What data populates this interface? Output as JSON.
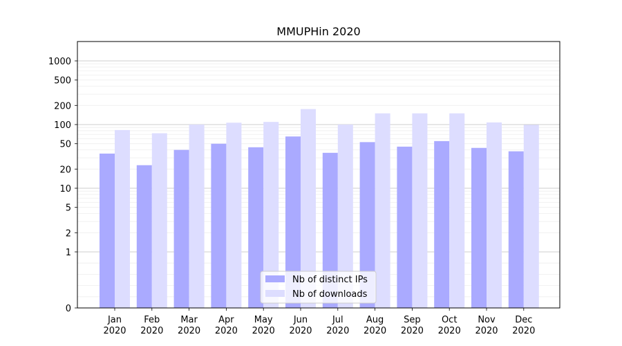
{
  "chart_data": {
    "type": "bar",
    "title": "MMUPHin 2020",
    "xlabel": "",
    "ylabel": "",
    "y_scale": "symlog",
    "ylim": [
      0,
      1300
    ],
    "yticks": [
      0,
      1,
      2,
      5,
      10,
      20,
      50,
      100,
      200,
      500,
      1000
    ],
    "ytick_labels": [
      "0",
      "1",
      "2",
      "5",
      "10",
      "20",
      "50",
      "100",
      "200",
      "500",
      "1000"
    ],
    "categories": [
      "Jan",
      "Feb",
      "Mar",
      "Apr",
      "May",
      "Jun",
      "Jul",
      "Aug",
      "Sep",
      "Oct",
      "Nov",
      "Dec"
    ],
    "category_year": "2020",
    "series": [
      {
        "name": "Nb of distinct IPs",
        "color": "#aaaaff",
        "values": [
          35,
          23,
          40,
          50,
          44,
          65,
          36,
          53,
          45,
          55,
          43,
          38
        ]
      },
      {
        "name": "Nb of downloads",
        "color": "#ddddff",
        "values": [
          82,
          73,
          100,
          107,
          110,
          175,
          100,
          150,
          150,
          150,
          108,
          99
        ]
      }
    ],
    "grid": true,
    "legend_position": "lower-center"
  }
}
